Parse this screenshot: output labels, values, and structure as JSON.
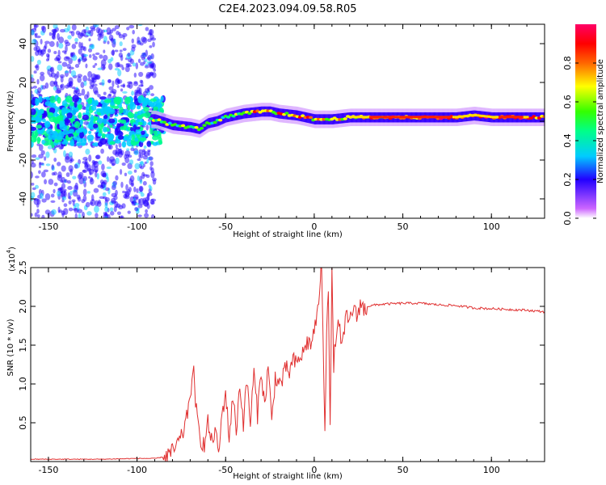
{
  "title": "C2E4.2023.094.09.58.R05",
  "chart_data": [
    {
      "type": "heatmap",
      "xlabel": "Height of straight line (km)",
      "ylabel": "Frequency (Hz)",
      "xlim": [
        -160,
        130
      ],
      "ylim": [
        -50,
        50
      ],
      "x_ticks": [
        -150,
        -100,
        -50,
        0,
        50,
        100
      ],
      "y_ticks": [
        -40,
        -20,
        0,
        20,
        40
      ],
      "colorbar": {
        "label": "Normalized spectral amplitude",
        "range": [
          0,
          1
        ],
        "ticks": [
          0.0,
          0.2,
          0.4,
          0.6,
          0.8
        ]
      },
      "ridge": {
        "x": [
          -90,
          -80,
          -70,
          -65,
          -60,
          -55,
          -50,
          -40,
          -30,
          -25,
          -20,
          -10,
          0,
          10,
          20,
          40,
          60,
          80,
          90,
          100,
          130
        ],
        "freq": [
          1,
          -2,
          -3,
          -4,
          -1,
          0,
          2,
          4,
          5,
          5,
          4,
          3,
          1,
          1,
          2,
          2,
          2,
          2,
          3,
          2,
          2
        ]
      }
    },
    {
      "type": "line",
      "xlabel": "Height of straight line (km)",
      "ylabel": "SNR (10 * v/v)",
      "y_multiplier": "(x10",
      "y_multiplier_exp": "4",
      "y_multiplier_close": ")",
      "xlim": [
        -160,
        130
      ],
      "ylim": [
        0,
        2.5
      ],
      "x_ticks": [
        -150,
        -100,
        -50,
        0,
        50,
        100
      ],
      "y_ticks": [
        0.5,
        1.0,
        1.5,
        2.0,
        2.5
      ],
      "series": [
        {
          "color": "#e03030",
          "x": [
            -160,
            -140,
            -120,
            -100,
            -90,
            -85,
            -80,
            -75,
            -72,
            -70,
            -68,
            -66,
            -64,
            -62,
            -60,
            -58,
            -56,
            -54,
            -52,
            -50,
            -48,
            -46,
            -44,
            -42,
            -40,
            -38,
            -36,
            -34,
            -32,
            -30,
            -28,
            -26,
            -24,
            -22,
            -20,
            -18,
            -16,
            -14,
            -12,
            -10,
            -8,
            -6,
            -4,
            -2,
            0,
            2,
            4,
            5,
            6,
            7,
            8,
            9,
            10,
            11,
            12,
            14,
            16,
            18,
            20,
            22,
            24,
            26,
            28,
            30,
            35,
            40,
            50,
            60,
            70,
            80,
            90,
            100,
            110,
            120,
            130
          ],
          "y": [
            0.03,
            0.03,
            0.03,
            0.04,
            0.04,
            0.06,
            0.12,
            0.3,
            0.55,
            0.9,
            1.12,
            0.5,
            0.3,
            0.2,
            0.5,
            0.25,
            0.4,
            0.1,
            0.6,
            0.9,
            0.3,
            0.85,
            0.4,
            1.0,
            0.5,
            1.05,
            0.5,
            1.15,
            0.6,
            1.2,
            0.7,
            1.25,
            0.5,
            1.1,
            1.0,
            1.05,
            1.2,
            1.15,
            1.3,
            1.25,
            1.35,
            1.4,
            1.55,
            1.5,
            1.7,
            1.9,
            2.6,
            1.5,
            0.45,
            1.7,
            2.3,
            0.45,
            2.4,
            1.2,
            1.6,
            1.75,
            1.5,
            1.85,
            1.8,
            2.0,
            1.85,
            2.05,
            1.95,
            2.0,
            2.02,
            2.03,
            2.04,
            2.04,
            2.02,
            2.01,
            1.98,
            1.97,
            1.96,
            1.95,
            1.93
          ]
        }
      ]
    }
  ]
}
